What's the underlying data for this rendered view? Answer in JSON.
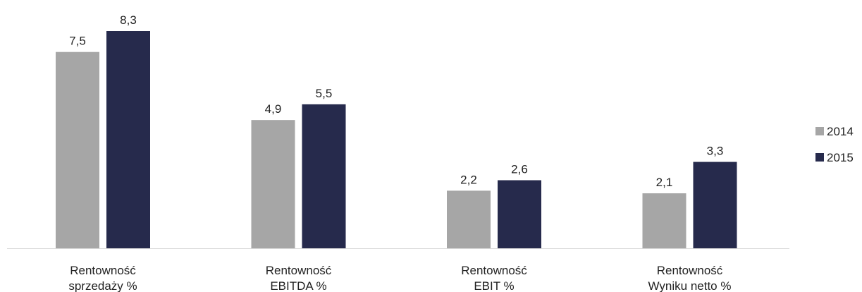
{
  "chart_data": {
    "type": "bar",
    "categories": [
      [
        "Rentowność",
        "sprzedaży %"
      ],
      [
        "Rentowność",
        "EBITDA %"
      ],
      [
        "Rentowność",
        "EBIT %"
      ],
      [
        "Rentowność",
        "Wyniku netto %"
      ]
    ],
    "series": [
      {
        "name": "2014",
        "values": [
          7.5,
          4.9,
          2.2,
          2.1
        ],
        "value_labels": [
          "7,5",
          "4,9",
          "2,2",
          "2,1"
        ],
        "color": "#a6a6a6"
      },
      {
        "name": "2015",
        "values": [
          8.3,
          5.5,
          2.6,
          3.3
        ],
        "value_labels": [
          "8,3",
          "5,5",
          "2,6",
          "3,3"
        ],
        "color": "#262a4c"
      }
    ],
    "ylim": [
      0,
      8.3
    ],
    "grid": false,
    "legend": "right",
    "axis_color": "#d9d9d9"
  }
}
